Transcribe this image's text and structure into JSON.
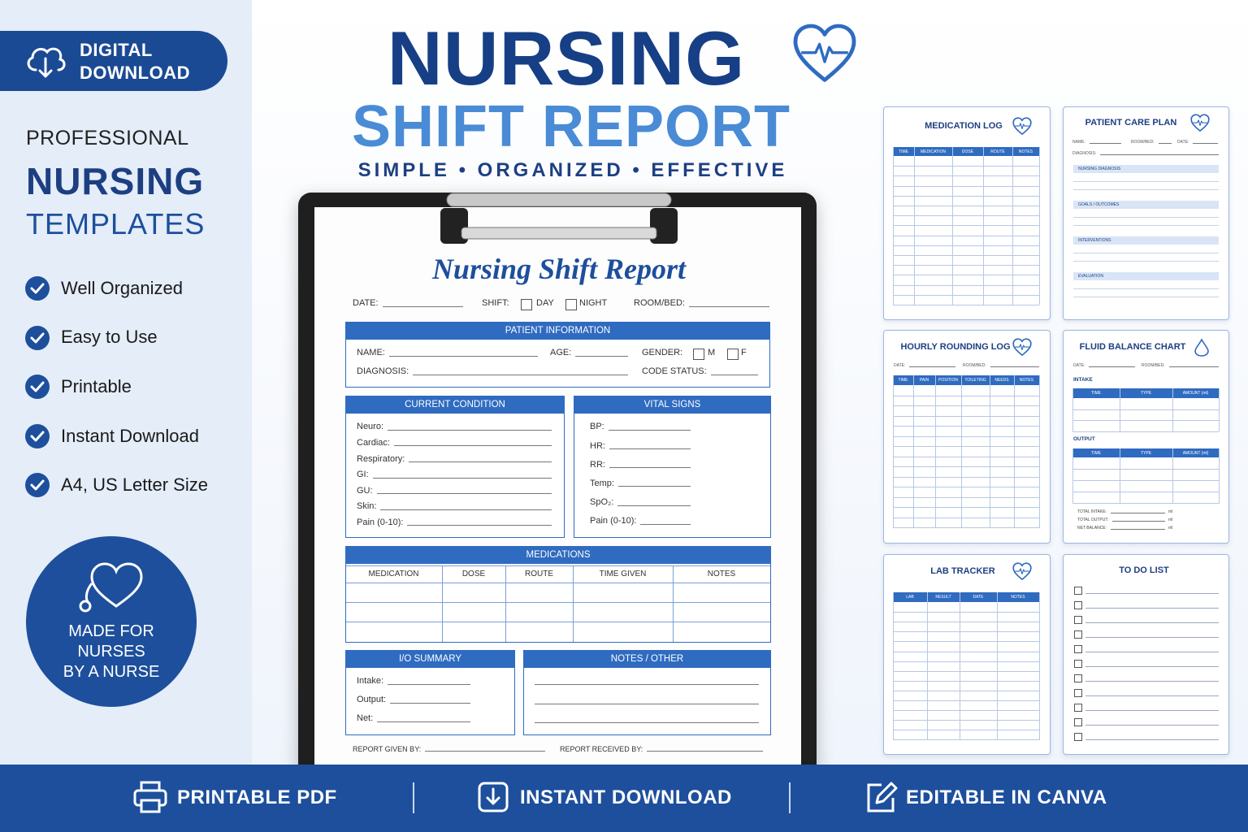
{
  "badge": {
    "lines": [
      "DIGITAL",
      "DOWNLOAD"
    ]
  },
  "sidebar": {
    "kicker": "PROFESSIONAL",
    "title": "NURSING",
    "subtitle": "TEMPLATES",
    "features": [
      "Well Organized",
      "Easy to Use",
      "Printable",
      "Instant Download",
      "A4, US Letter Size"
    ]
  },
  "seal": {
    "lines": [
      "MADE FOR",
      "NURSES",
      "BY A NURSE"
    ]
  },
  "header": {
    "title": "NURSING",
    "subtitle": "SHIFT REPORT",
    "tagline": "SIMPLE • ORGANIZED • EFFECTIVE"
  },
  "form": {
    "title": "Nursing Shift Report",
    "top": {
      "date": "DATE:",
      "shift": "SHIFT:",
      "day": "DAY",
      "night": "NIGHT",
      "room": "ROOM/BED:"
    },
    "patient": {
      "heading": "PATIENT INFORMATION",
      "name": "NAME:",
      "age": "AGE:",
      "gender": "GENDER:",
      "m": "M",
      "f": "F",
      "diagnosis": "DIAGNOSIS:",
      "code": "CODE STATUS:"
    },
    "condition": {
      "heading": "CURRENT CONDITION",
      "fields": [
        "Neuro:",
        "Cardiac:",
        "Respiratory:",
        "GI:",
        "GU:",
        "Skin:",
        "Pain (0-10):"
      ]
    },
    "vitals": {
      "heading": "VITAL SIGNS",
      "fields": [
        "BP:",
        "HR:",
        "RR:",
        "Temp:",
        "SpO₂:",
        "Pain (0-10):"
      ]
    },
    "medications": {
      "heading": "MEDICATIONS",
      "columns": [
        "MEDICATION",
        "DOSE",
        "ROUTE",
        "TIME GIVEN",
        "NOTES"
      ]
    },
    "io": {
      "heading": "I/O SUMMARY",
      "fields": [
        "Intake:",
        "Output:",
        "Net:"
      ]
    },
    "notes": {
      "heading": "NOTES / OTHER"
    },
    "signoff": [
      "REPORT GIVEN BY:",
      "REPORT RECEIVED BY:"
    ]
  },
  "thumbnails": [
    {
      "title": "MEDICATION LOG",
      "columns": [
        "TIME",
        "MEDICATION",
        "DOSE",
        "ROUTE",
        "NOTES"
      ]
    },
    {
      "title": "PATIENT CARE PLAN",
      "fields": [
        "NAME:",
        "ROOM/BED:",
        "DATE:",
        "DIAGNOSIS:"
      ],
      "sections": [
        "NURSING DIAGNOSIS",
        "GOALS / OUTCOMES",
        "INTERVENTIONS",
        "EVALUATION"
      ]
    },
    {
      "title": "HOURLY ROUNDING LOG",
      "fields": [
        "DATE:",
        "ROOM/BED:"
      ],
      "columns": [
        "TIME",
        "PAIN",
        "POSITION",
        "TOILETING",
        "NEEDS",
        "NOTES"
      ]
    },
    {
      "title": "FLUID BALANCE CHART",
      "fields": [
        "DATE:",
        "ROOM/BED:"
      ],
      "sections": [
        "INTAKE",
        "OUTPUT"
      ],
      "columns": [
        "TIME",
        "TYPE",
        "AMOUNT (ml)"
      ],
      "totals": [
        "TOTAL INTAKE:",
        "TOTAL OUTPUT:",
        "NET BALANCE:"
      ],
      "unit": "ml"
    },
    {
      "title": "LAB TRACKER",
      "columns": [
        "LAB",
        "RESULT",
        "DATE",
        "NOTES"
      ]
    },
    {
      "title": "TO DO LIST"
    }
  ],
  "footer": [
    "PRINTABLE PDF",
    "INSTANT DOWNLOAD",
    "EDITABLE IN CANVA"
  ]
}
